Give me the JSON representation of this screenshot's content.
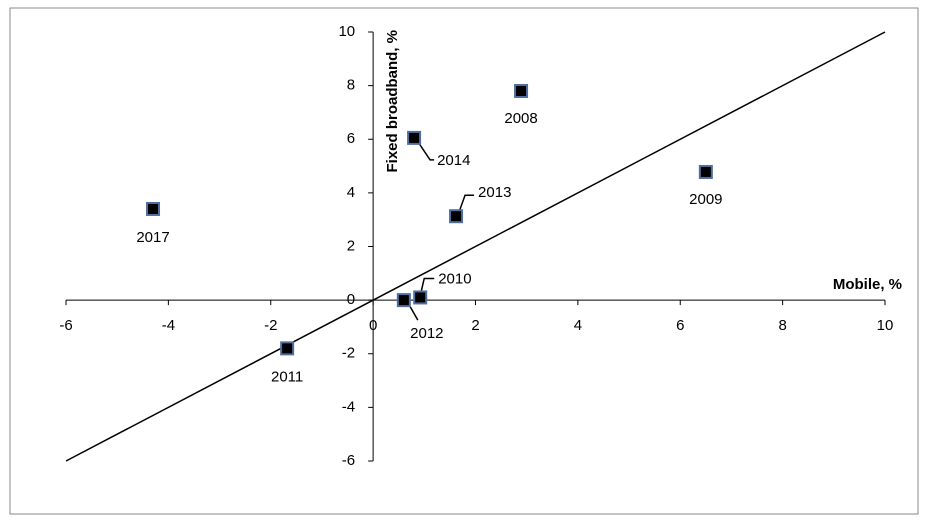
{
  "chart_data": {
    "type": "scatter",
    "x_label": "Mobile, %",
    "y_label": "Fixed broadband, %",
    "labels": [
      "2008",
      "2009",
      "2017",
      "2014",
      "2013",
      "2010",
      "2012",
      "2011"
    ],
    "x": [
      2.89,
      6.5,
      -4.3,
      0.8,
      1.62,
      0.92,
      0.6,
      -1.68
    ],
    "values": [
      7.8,
      4.78,
      3.4,
      6.05,
      3.13,
      0.1,
      0,
      -1.8
    ],
    "color": "#000000",
    "edge_color": "#4f6f9f",
    "line": {
      "x": [
        -6,
        10
      ],
      "y": [
        -6,
        10
      ]
    },
    "xlim": [
      -6,
      10
    ],
    "ylim": [
      -6,
      10
    ],
    "xticks": [
      -6,
      -4,
      -2,
      0,
      2,
      4,
      6,
      8,
      10
    ],
    "yticks": [
      -6,
      -4,
      -2,
      0,
      2,
      4,
      6,
      8,
      10
    ]
  }
}
